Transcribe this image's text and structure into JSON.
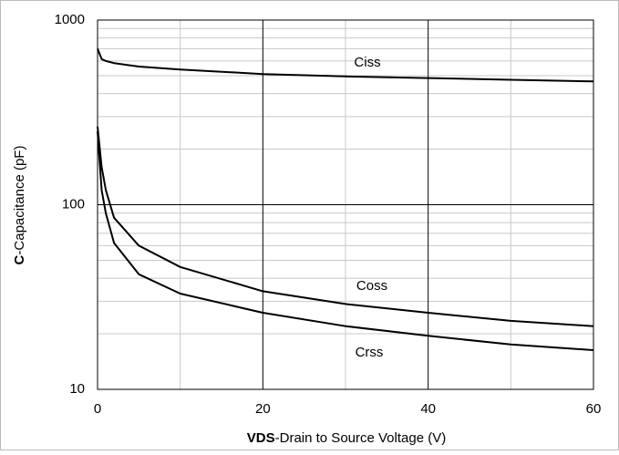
{
  "chart_data": {
    "type": "line",
    "xlabel_bold": "VDS",
    "xlabel": "-Drain to Source Voltage (V)",
    "ylabel_bold": "C",
    "ylabel": "-Capacitance (pF)",
    "x": [
      0,
      0.5,
      1,
      2,
      5,
      10,
      20,
      30,
      40,
      50,
      60
    ],
    "series": [
      {
        "name": "Ciss",
        "color": "#000000",
        "values": [
          700,
          615,
          600,
          585,
          560,
          540,
          510,
          495,
          485,
          475,
          465
        ]
      },
      {
        "name": "Coss",
        "color": "#000000",
        "values": [
          265,
          160,
          120,
          85,
          60,
          46,
          34,
          29,
          26,
          23.5,
          22
        ]
      },
      {
        "name": "Crss",
        "color": "#000000",
        "values": [
          250,
          120,
          90,
          62,
          42,
          33,
          26,
          22,
          19.5,
          17.5,
          16.3
        ]
      }
    ],
    "xlim": [
      0,
      60
    ],
    "xticks": [
      0,
      20,
      40,
      60
    ],
    "xminor": [
      10,
      30,
      50
    ],
    "ylim": [
      10,
      1000
    ],
    "yticks": [
      10,
      100,
      1000
    ],
    "yminor": [
      20,
      30,
      40,
      50,
      60,
      70,
      80,
      90,
      200,
      300,
      400,
      500,
      600,
      700,
      800,
      900
    ],
    "log_y": true,
    "grid": true
  }
}
